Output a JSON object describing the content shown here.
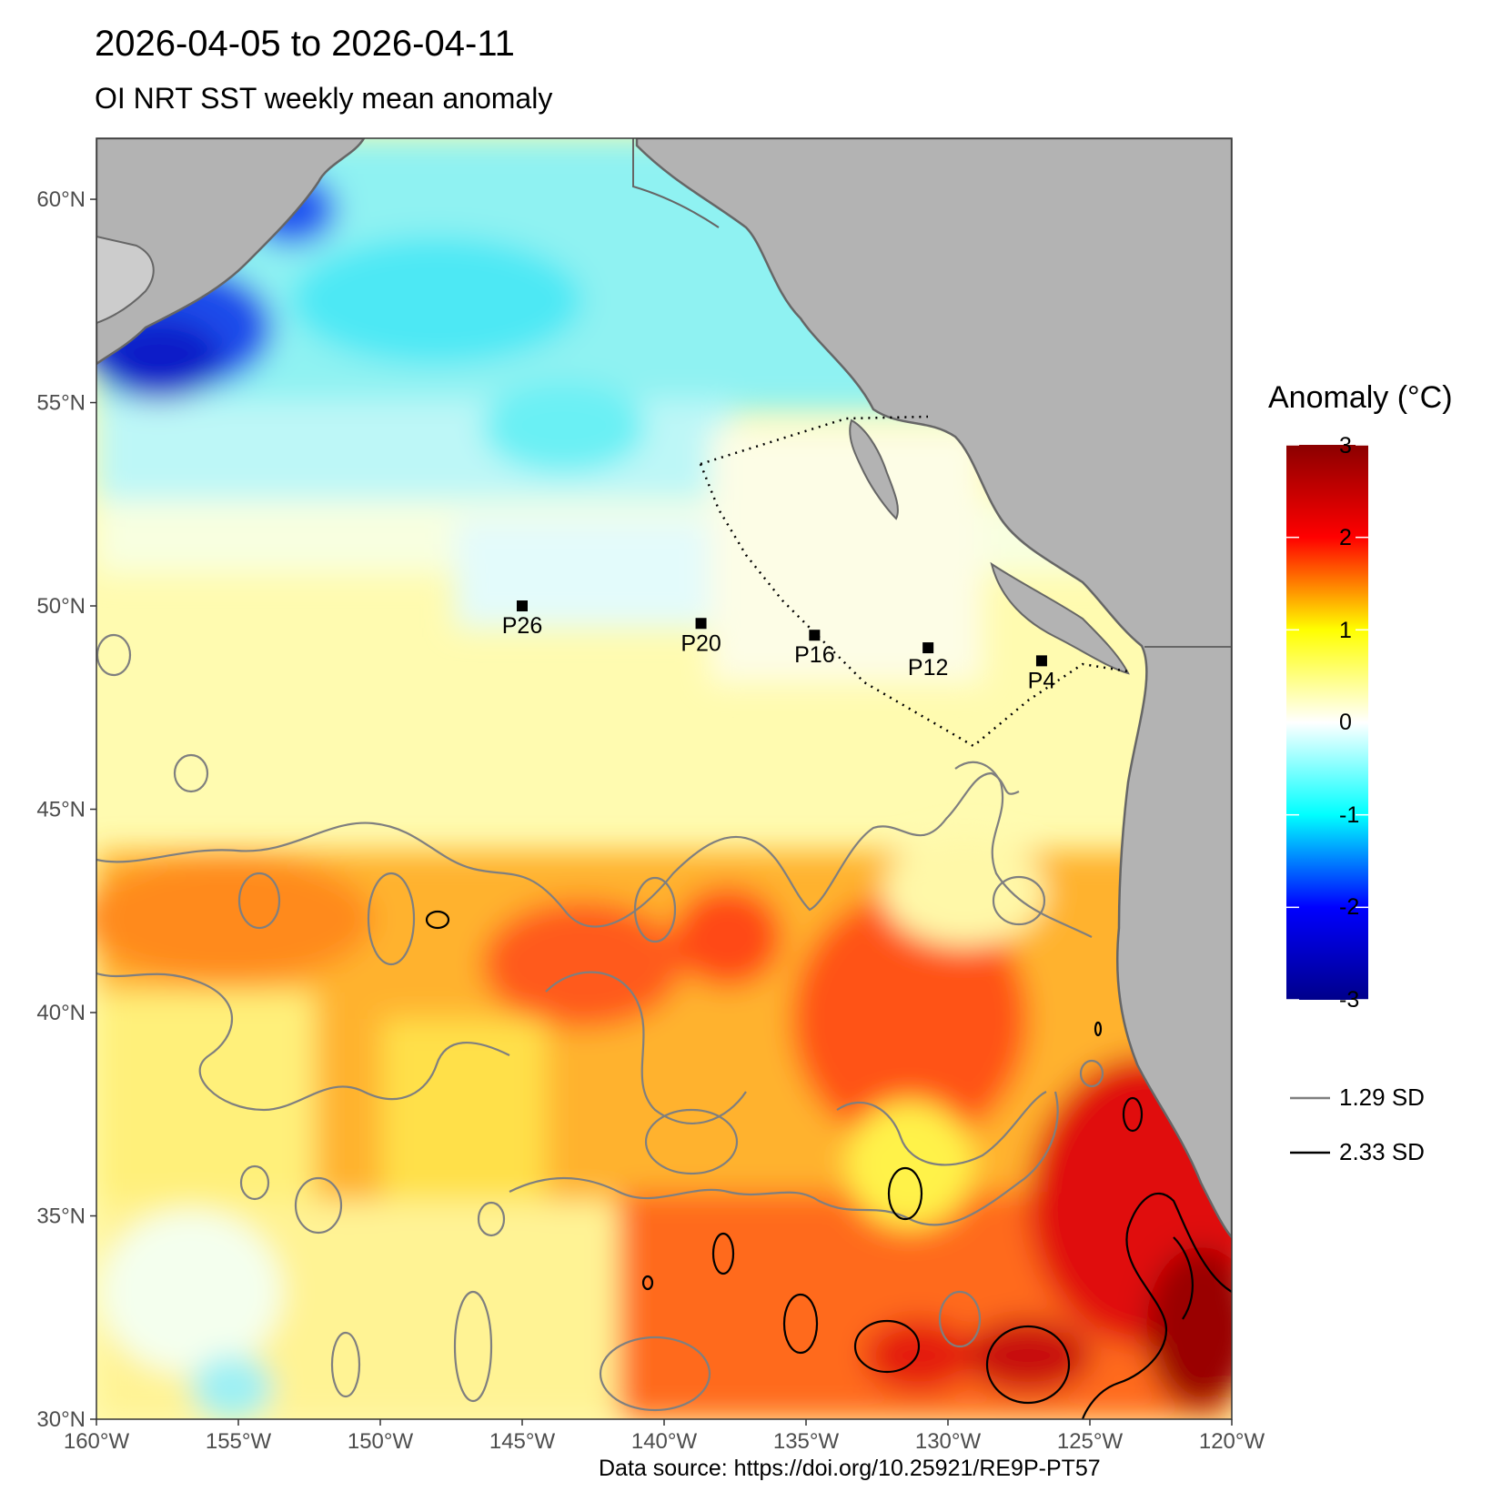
{
  "title": "2026-04-05 to 2026-04-11",
  "subtitle": "OI NRT SST weekly mean anomaly",
  "source": "Data source: https://doi.org/10.25921/RE9P-PT57",
  "map": {
    "lon_range": [
      -160,
      -120
    ],
    "lat_range": [
      30,
      61.5
    ],
    "lat_ticks": [
      {
        "value": 60,
        "label": "60°N"
      },
      {
        "value": 55,
        "label": "55°N"
      },
      {
        "value": 50,
        "label": "50°N"
      },
      {
        "value": 45,
        "label": "45°N"
      },
      {
        "value": 40,
        "label": "40°N"
      },
      {
        "value": 35,
        "label": "35°N"
      },
      {
        "value": 30,
        "label": "30°N"
      }
    ],
    "lon_ticks": [
      {
        "value": -160,
        "label": "160°W"
      },
      {
        "value": -155,
        "label": "155°W"
      },
      {
        "value": -150,
        "label": "150°W"
      },
      {
        "value": -145,
        "label": "145°W"
      },
      {
        "value": -140,
        "label": "140°W"
      },
      {
        "value": -135,
        "label": "135°W"
      },
      {
        "value": -130,
        "label": "130°W"
      },
      {
        "value": -125,
        "label": "125°W"
      },
      {
        "value": -120,
        "label": "120°W"
      }
    ],
    "stations": [
      {
        "name": "P26",
        "lon": -145,
        "lat": 50
      },
      {
        "name": "P20",
        "lon": -138.7,
        "lat": 49.57
      },
      {
        "name": "P16",
        "lon": -134.7,
        "lat": 49.28
      },
      {
        "name": "P12",
        "lon": -130.7,
        "lat": 48.97
      },
      {
        "name": "P4",
        "lon": -126.7,
        "lat": 48.65
      }
    ],
    "colors": {
      "land": "#b3b3b3",
      "land_light": "#cccccc",
      "coast": "#666666",
      "contour_129": "#7f7f7f",
      "contour_233": "#000000"
    }
  },
  "legend": {
    "title": "Anomaly (°C)",
    "colorbar": {
      "min": -3,
      "max": 3,
      "ticks": [
        "3",
        "2",
        "1",
        "0",
        "-1",
        "-2",
        "-3"
      ],
      "stops": [
        "#00008b",
        "#0000ff",
        "#00ffff",
        "#ffffff",
        "#ffff00",
        "#ff0000",
        "#8b0000"
      ]
    },
    "contours": [
      {
        "label": "1.29 SD",
        "color": "#7f7f7f"
      },
      {
        "label": "2.33 SD",
        "color": "#000000"
      }
    ]
  }
}
